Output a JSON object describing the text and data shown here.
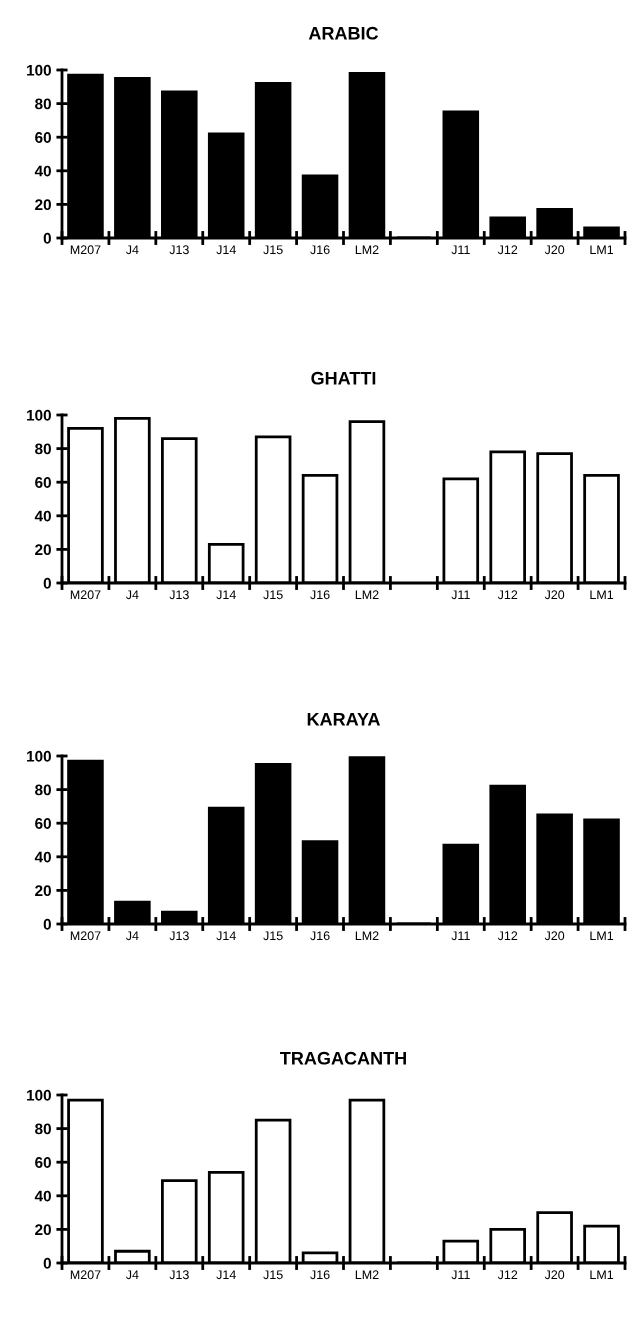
{
  "chart_data": [
    {
      "type": "bar",
      "title": "ARABIC",
      "categories": [
        "M207",
        "J4",
        "J13",
        "J14",
        "J15",
        "J16",
        "LM2",
        null,
        "J11",
        "J12",
        "J20",
        "LM1"
      ],
      "values": [
        97,
        95,
        87,
        62,
        92,
        37,
        98,
        0,
        75,
        12,
        17,
        6
      ],
      "color": "#000000",
      "ylim": [
        0,
        100
      ],
      "yticks": [
        0,
        20,
        40,
        60,
        80,
        100
      ]
    },
    {
      "type": "bar",
      "title": "GHATTI",
      "categories": [
        "M207",
        "J4",
        "J13",
        "J14",
        "J15",
        "J16",
        "LM2",
        null,
        "J11",
        "J12",
        "J20",
        "LM1"
      ],
      "values": [
        92,
        98,
        86,
        23,
        87,
        64,
        96,
        null,
        62,
        78,
        77,
        64
      ],
      "color": "#ffffff",
      "ylim": [
        0,
        100
      ],
      "yticks": [
        0,
        20,
        40,
        60,
        80,
        100
      ]
    },
    {
      "type": "bar",
      "title": "KARAYA",
      "categories": [
        "M207",
        "J4",
        "J13",
        "J14",
        "J15",
        "J16",
        "LM2",
        null,
        "J11",
        "J12",
        "J20",
        "LM1"
      ],
      "values": [
        97,
        13,
        7,
        69,
        95,
        49,
        99,
        0,
        47,
        82,
        65,
        62
      ],
      "color": "#000000",
      "ylim": [
        0,
        100
      ],
      "yticks": [
        0,
        20,
        40,
        60,
        80,
        100
      ]
    },
    {
      "type": "bar",
      "title": "TRAGACANTH",
      "categories": [
        "M207",
        "J4",
        "J13",
        "J14",
        "J15",
        "J16",
        "LM2",
        null,
        "J11",
        "J12",
        "J20",
        "LM1"
      ],
      "values": [
        97,
        7,
        49,
        54,
        85,
        6,
        97,
        0,
        13,
        20,
        30,
        22
      ],
      "color": "#ffffff",
      "ylim": [
        0,
        100
      ],
      "yticks": [
        0,
        20,
        40,
        60,
        80,
        100
      ]
    }
  ]
}
